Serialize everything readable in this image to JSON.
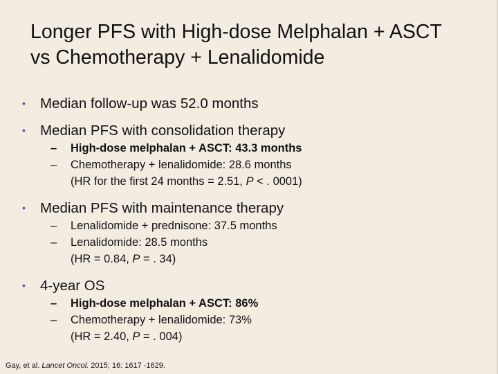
{
  "title": {
    "line1": "Longer PFS with High-dose Melphalan + ASCT",
    "line2": "vs Chemotherapy + Lenalidomide"
  },
  "bullets": {
    "b1": "Median follow-up was 52.0 months",
    "b2": "Median PFS with consolidation therapy",
    "b2_sub1": "High-dose melphalan + ASCT: 43.3 months",
    "b2_sub2": "Chemotherapy + lenalidomide: 28.6 months",
    "b2_note_pre": "(HR for the first 24 months = 2.51, ",
    "b2_note_p": "P",
    "b2_note_post": " < . 0001)",
    "b3": "Median PFS with maintenance therapy",
    "b3_sub1": "Lenalidomide + prednisone: 37.5 months",
    "b3_sub2": "Lenalidomide: 28.5 months",
    "b3_note_pre": "(HR = 0.84, ",
    "b3_note_p": "P",
    "b3_note_post": " = . 34)",
    "b4": "4-year OS",
    "b4_sub1": "High-dose melphalan + ASCT: 86%",
    "b4_sub2": "Chemotherapy + lenalidomide: 73%",
    "b4_note_pre": "(HR = 2.40, ",
    "b4_note_p": "P",
    "b4_note_post": " = . 004)"
  },
  "symbols": {
    "bullet": "•",
    "dash": "–"
  },
  "footer": {
    "pre": "Gay, et al. ",
    "journal": "Lancet Oncol.",
    "post": " 2015; 16: 1617 -1629."
  },
  "colors": {
    "background": "#f3ece1",
    "bullet": "#5a4a9a",
    "text": "#111111"
  }
}
